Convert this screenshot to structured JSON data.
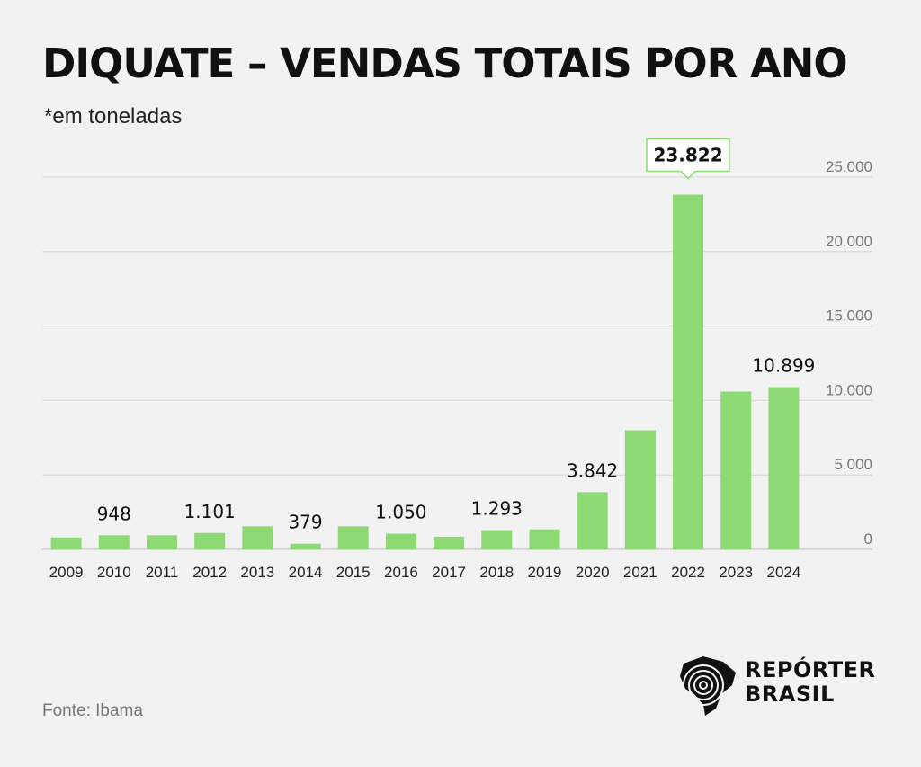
{
  "title": "DIQUATE – VENDAS TOTAIS POR ANO",
  "subtitle": "*em toneladas",
  "source": "Fonte: Ibama",
  "logo": {
    "line1": "REPÓRTER",
    "line2": "BRASIL"
  },
  "colors": {
    "bar": "#8dd974",
    "highlight_border": "#8dd974",
    "grid": "#d6d6d6",
    "background": "#f2f2f2"
  },
  "chart_data": {
    "type": "bar",
    "categories": [
      "2009",
      "2010",
      "2011",
      "2012",
      "2013",
      "2014",
      "2015",
      "2016",
      "2017",
      "2018",
      "2019",
      "2020",
      "2021",
      "2022",
      "2023",
      "2024"
    ],
    "values": [
      800,
      948,
      950,
      1101,
      1550,
      379,
      1550,
      1050,
      850,
      1293,
      1350,
      3842,
      8000,
      23822,
      10600,
      10899
    ],
    "data_labels": [
      "",
      "948",
      "",
      "1.101",
      "",
      "379",
      "",
      "1.050",
      "",
      "1.293",
      "",
      "3.842",
      "",
      "23.822",
      "",
      "10.899"
    ],
    "highlight_index": 13,
    "yticks": [
      0,
      5000,
      10000,
      15000,
      20000,
      25000
    ],
    "ytick_labels": [
      "0",
      "5.000",
      "10.000",
      "15.000",
      "20.000",
      "25.000"
    ],
    "ylim": [
      0,
      25000
    ],
    "grid": true,
    "y_axis_position": "right",
    "xlabel": "",
    "ylabel": ""
  }
}
